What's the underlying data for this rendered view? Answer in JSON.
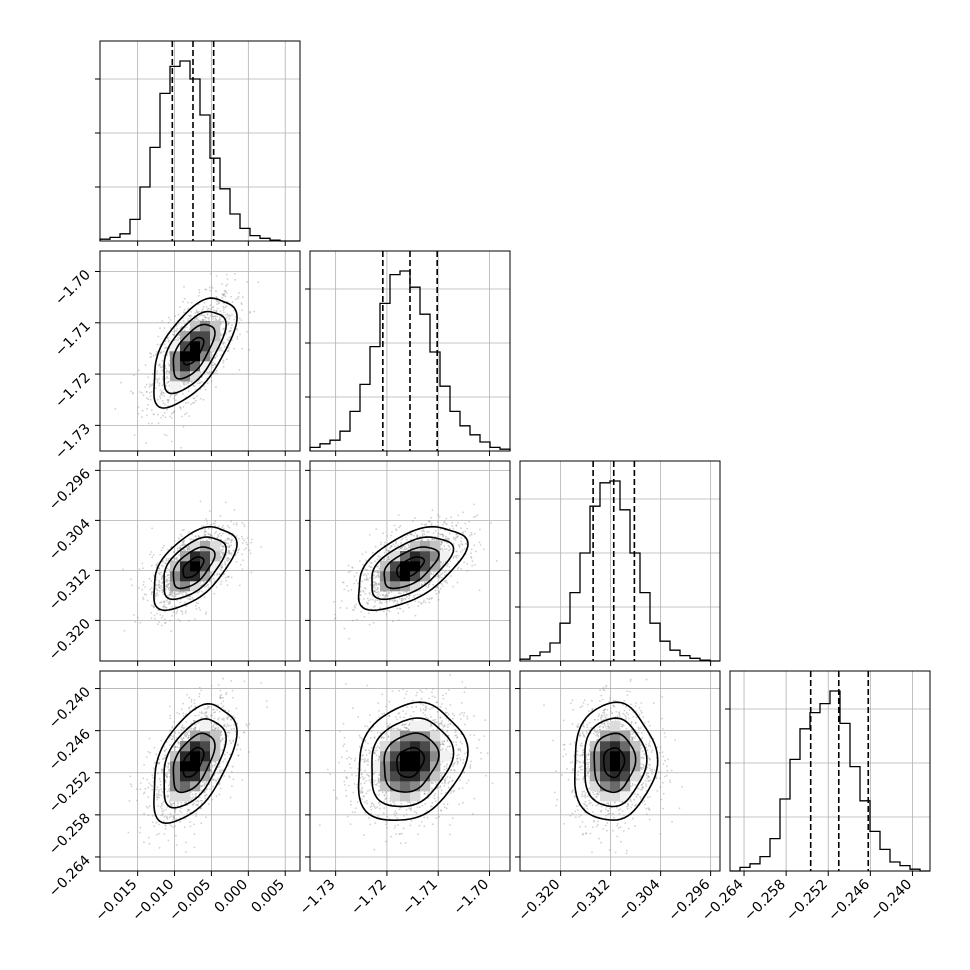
{
  "chart_data": {
    "type": "corner",
    "title": "",
    "parameters": [
      {
        "name": "",
        "mean": -0.0075,
        "sigma": 0.0028,
        "quantiles": [
          -0.0103,
          -0.0075,
          -0.0047
        ],
        "range": [
          -0.0201,
          0.007
        ],
        "ticks": [
          "−0.015",
          "−0.010",
          "−0.005",
          "0.000",
          "0.005"
        ],
        "tick_values": [
          -0.015,
          -0.01,
          -0.005,
          0.0,
          0.005
        ],
        "hist_counts": [
          0.01,
          0.02,
          0.04,
          0.12,
          0.3,
          0.52,
          0.82,
          0.97,
          1.0,
          0.9,
          0.7,
          0.46,
          0.29,
          0.15,
          0.07,
          0.03,
          0.015,
          0.005,
          0.0,
          0.0
        ]
      },
      {
        "name": "",
        "mean": -1.7155,
        "sigma": 0.0053,
        "quantiles": [
          -1.7208,
          -1.7155,
          -1.7102
        ],
        "range": [
          -1.735,
          -1.696
        ],
        "ticks": [
          "−1.73",
          "−1.72",
          "−1.71",
          "−1.70"
        ],
        "tick_values": [
          -1.73,
          -1.72,
          -1.71,
          -1.7
        ],
        "hist_counts": [
          0.02,
          0.04,
          0.06,
          0.11,
          0.22,
          0.37,
          0.58,
          0.82,
          0.98,
          1.0,
          0.91,
          0.76,
          0.55,
          0.36,
          0.22,
          0.14,
          0.09,
          0.05,
          0.02,
          0.01
        ]
      },
      {
        "name": "",
        "mean": -0.3115,
        "sigma": 0.0033,
        "quantiles": [
          -0.3148,
          -0.3115,
          -0.3082
        ],
        "range": [
          -0.3265,
          -0.2945
        ],
        "ticks": [
          "−0.320",
          "−0.312",
          "−0.304",
          "−0.296"
        ],
        "tick_values": [
          -0.32,
          -0.312,
          -0.304,
          -0.296
        ],
        "hist_counts": [
          0.01,
          0.03,
          0.05,
          0.1,
          0.21,
          0.38,
          0.6,
          0.86,
          0.99,
          1.0,
          0.84,
          0.6,
          0.38,
          0.21,
          0.11,
          0.06,
          0.03,
          0.015,
          0.005,
          0.0
        ]
      },
      {
        "name": "",
        "mean": -0.2505,
        "sigma": 0.0042,
        "quantiles": [
          -0.2545,
          -0.2505,
          -0.2463
        ],
        "range": [
          -0.266,
          -0.2375
        ],
        "ticks": [
          "−0.264",
          "−0.258",
          "−0.252",
          "−0.246",
          "−0.240"
        ],
        "tick_values": [
          -0.264,
          -0.258,
          -0.252,
          -0.246,
          -0.24
        ],
        "hist_counts": [
          0.0,
          0.02,
          0.04,
          0.08,
          0.18,
          0.4,
          0.62,
          0.79,
          0.88,
          0.93,
          1.0,
          0.82,
          0.58,
          0.39,
          0.22,
          0.12,
          0.05,
          0.03,
          0.01,
          0.0
        ]
      }
    ],
    "correlations": [
      [
        1.0,
        0.6,
        0.55,
        0.5
      ],
      [
        0.6,
        1.0,
        0.55,
        0.2
      ],
      [
        0.55,
        0.55,
        1.0,
        0.05
      ],
      [
        0.5,
        0.2,
        0.05,
        1.0
      ]
    ],
    "contour_levels_sigma": [
      0.5,
      1.0,
      1.5,
      2.0
    ],
    "grid": true,
    "quantile_lines": "dashed"
  }
}
